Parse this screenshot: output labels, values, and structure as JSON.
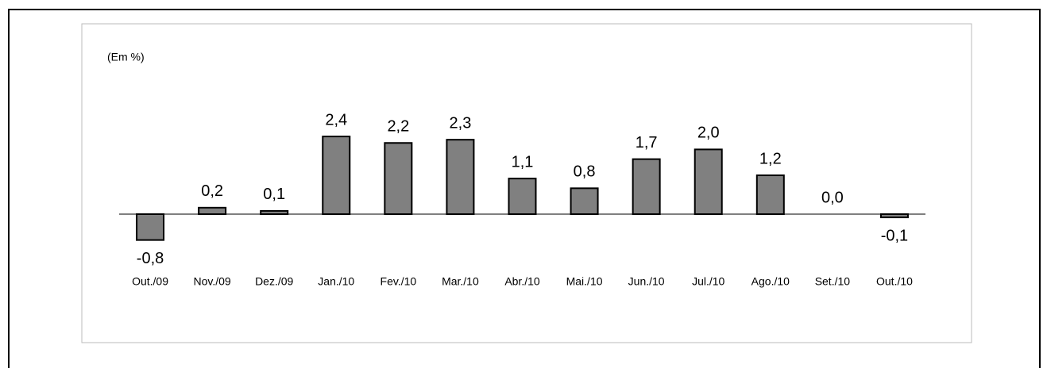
{
  "chart_data": {
    "type": "bar",
    "y_label": "(Em %)",
    "categories": [
      "Out./09",
      "Nov./09",
      "Dez./09",
      "Jan./10",
      "Fev./10",
      "Mar./10",
      "Abr./10",
      "Mai./10",
      "Jun./10",
      "Jul./10",
      "Ago./10",
      "Set./10",
      "Out./10"
    ],
    "values": [
      -0.8,
      0.2,
      0.1,
      2.4,
      2.2,
      2.3,
      1.1,
      0.8,
      1.7,
      2.0,
      1.2,
      0.0,
      -0.1
    ],
    "value_labels": [
      "-0,8",
      "0,2",
      "0,1",
      "2,4",
      "2,2",
      "2,3",
      "1,1",
      "0,8",
      "1,7",
      "2,0",
      "1,2",
      "0,0",
      "-0,1"
    ],
    "color": "#808080"
  }
}
